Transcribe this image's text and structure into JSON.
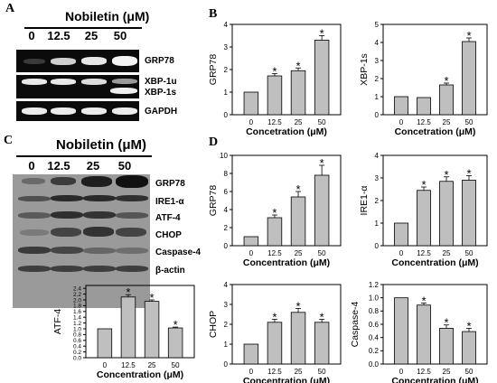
{
  "panels": {
    "a": "A",
    "b": "B",
    "c": "C",
    "d": "D"
  },
  "panel_a": {
    "treatment_label": "Nobiletin (μM)",
    "lanes": [
      "0",
      "12.5",
      "25",
      "50"
    ],
    "bands": [
      "GRP78",
      "XBP-1u",
      "XBP-1s",
      "GAPDH"
    ]
  },
  "panel_c": {
    "treatment_label": "Nobiletin (μM)",
    "lanes": [
      "0",
      "12.5",
      "25",
      "50"
    ],
    "bands": [
      "GRP78",
      "IRE1-α",
      "ATF-4",
      "CHOP",
      "Caspase-4",
      "β-actin"
    ]
  },
  "chart_data": [
    {
      "type": "bar",
      "id": "b-grp78",
      "categories": [
        "0",
        "12.5",
        "25",
        "50"
      ],
      "values": [
        1.0,
        1.72,
        1.95,
        3.3
      ],
      "errors": [
        0,
        0.1,
        0.12,
        0.2
      ],
      "significant": [
        false,
        true,
        true,
        true
      ],
      "ylabel": "GRP78",
      "xlabel": "Concetration (μM)",
      "ylim": [
        0,
        4
      ],
      "yticks": [
        0,
        1,
        2,
        3,
        4
      ],
      "ytick_labels": [
        "0",
        "1",
        "2",
        "3",
        "4"
      ]
    },
    {
      "type": "bar",
      "id": "b-xbp1s",
      "categories": [
        "0",
        "12.5",
        "25",
        "50"
      ],
      "values": [
        1.0,
        0.95,
        1.65,
        4.05
      ],
      "errors": [
        0,
        0,
        0.1,
        0.2
      ],
      "significant": [
        false,
        false,
        true,
        true
      ],
      "ylabel": "XBP-1s",
      "xlabel": "Concetration (μM)",
      "ylim": [
        0,
        5
      ],
      "yticks": [
        0,
        1,
        2,
        3,
        4,
        5
      ],
      "ytick_labels": [
        "0",
        "1",
        "2",
        "3",
        "4",
        "5"
      ]
    },
    {
      "type": "bar",
      "id": "d-grp78",
      "categories": [
        "0",
        "12.5",
        "25",
        "50"
      ],
      "values": [
        1.0,
        3.1,
        5.4,
        7.8
      ],
      "errors": [
        0,
        0.3,
        0.6,
        1.1
      ],
      "significant": [
        false,
        true,
        true,
        true
      ],
      "ylabel": "GRP78",
      "xlabel": "Concentration (μM)",
      "ylim": [
        0,
        10
      ],
      "yticks": [
        0,
        2,
        4,
        6,
        8,
        10
      ],
      "ytick_labels": [
        "0",
        "2",
        "4",
        "6",
        "8",
        "10"
      ]
    },
    {
      "type": "bar",
      "id": "d-ire1",
      "categories": [
        "0",
        "12.5",
        "25",
        "50"
      ],
      "values": [
        1.0,
        2.45,
        2.85,
        2.9
      ],
      "errors": [
        0,
        0.15,
        0.2,
        0.2
      ],
      "significant": [
        false,
        true,
        true,
        true
      ],
      "ylabel": "IRE1-α",
      "xlabel": "Concentration (μM)",
      "ylim": [
        0,
        4
      ],
      "yticks": [
        0,
        1,
        2,
        3,
        4
      ],
      "ytick_labels": [
        "0",
        "1",
        "2",
        "3",
        "4"
      ]
    },
    {
      "type": "bar",
      "id": "c-atf4",
      "categories": [
        "0",
        "12.5",
        "25",
        "50"
      ],
      "values": [
        1.0,
        2.1,
        1.95,
        1.03
      ],
      "errors": [
        0,
        0.08,
        0.05,
        0.03
      ],
      "significant": [
        false,
        true,
        true,
        true
      ],
      "ylabel": "ATF-4",
      "xlabel": "Concentration (μM)",
      "ylim": [
        0,
        2.5
      ],
      "yticks": [
        0,
        0.2,
        0.4,
        0.6,
        0.8,
        1.0,
        1.2,
        1.4,
        1.6,
        1.8,
        2.0,
        2.2,
        2.4
      ],
      "ytick_labels": [
        "0.0",
        "0.2",
        "0.4",
        "0.6",
        "0.8",
        "1.0",
        "1.2",
        "1.4",
        "1.6",
        "1.8",
        "2.0",
        "2.2",
        "2.4"
      ]
    },
    {
      "type": "bar",
      "id": "d-chop",
      "categories": [
        "0",
        "12.5",
        "25",
        "50"
      ],
      "values": [
        1.0,
        2.1,
        2.6,
        2.1
      ],
      "errors": [
        0,
        0.15,
        0.2,
        0.15
      ],
      "significant": [
        false,
        true,
        true,
        true
      ],
      "ylabel": "CHOP",
      "xlabel": "Concentration (μM)",
      "ylim": [
        0,
        4
      ],
      "yticks": [
        0,
        1,
        2,
        3,
        4
      ],
      "ytick_labels": [
        "0",
        "1",
        "2",
        "3",
        "4"
      ]
    },
    {
      "type": "bar",
      "id": "d-casp4",
      "categories": [
        "0",
        "12.5",
        "25",
        "50"
      ],
      "values": [
        1.0,
        0.89,
        0.54,
        0.49
      ],
      "errors": [
        0,
        0.03,
        0.05,
        0.05
      ],
      "significant": [
        false,
        true,
        true,
        true
      ],
      "ylabel": "Caspase-4",
      "xlabel": "Concentration (μM)",
      "ylim": [
        0,
        1.2
      ],
      "yticks": [
        0,
        0.2,
        0.4,
        0.6,
        0.8,
        1.0,
        1.2
      ],
      "ytick_labels": [
        "0.0",
        "0.2",
        "0.4",
        "0.6",
        "0.8",
        "1.0",
        "1.2"
      ]
    }
  ]
}
